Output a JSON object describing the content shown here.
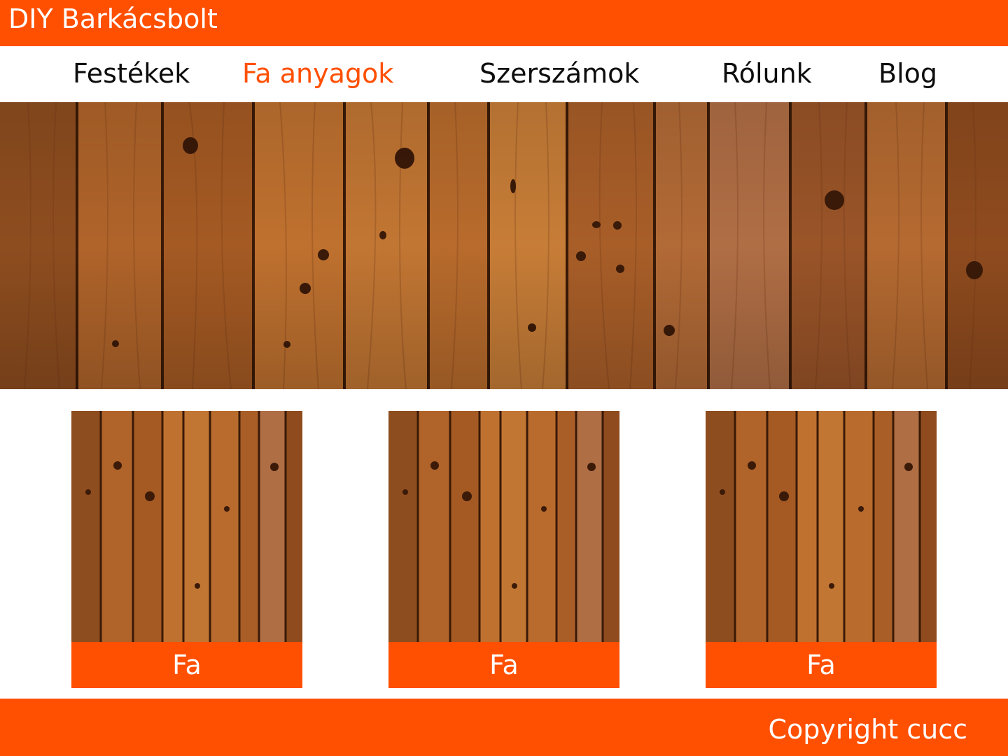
{
  "header": {
    "brand": "DIY Barkácsbolt"
  },
  "nav": {
    "items": [
      {
        "label": "Festékek",
        "active": false
      },
      {
        "label": "Fa anyagok",
        "active": true
      },
      {
        "label": "Szerszámok",
        "active": false
      },
      {
        "label": "Rólunk",
        "active": false
      },
      {
        "label": "Blog",
        "active": false
      }
    ]
  },
  "hero": {
    "image": "wood-planks-photo"
  },
  "products": [
    {
      "label": "Fa",
      "image": "wood-planks-photo"
    },
    {
      "label": "Fa",
      "image": "wood-planks-photo"
    },
    {
      "label": "Fa",
      "image": "wood-planks-photo"
    }
  ],
  "footer": {
    "copyright": "Copyright cucc"
  },
  "colors": {
    "accent": "#ff4f00",
    "text": "#0d0d0d",
    "background": "#ffffff",
    "wood": "#b56a2c"
  }
}
